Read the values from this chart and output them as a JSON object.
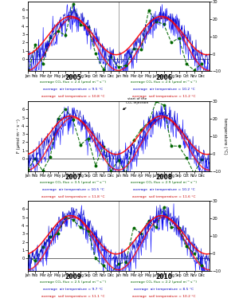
{
  "panels": [
    {
      "years": [
        "2005",
        "2006"
      ],
      "co2_avg_left": "2.4",
      "co2_avg_right": "2.6",
      "air_temp_left": "9.5",
      "air_temp_right": "10.2",
      "soil_temp_left": "10.8",
      "soil_temp_right": "11.2",
      "arrow": false
    },
    {
      "years": [
        "2007",
        "2008"
      ],
      "co2_avg_left": "3.5",
      "co2_avg_right": "2.9",
      "air_temp_left": "10.5",
      "air_temp_right": "10.2",
      "soil_temp_left": "11.8",
      "soil_temp_right": "11.6",
      "arrow": true
    },
    {
      "years": [
        "2009",
        "2010"
      ],
      "co2_avg_left": "2.5",
      "co2_avg_right": "2.2",
      "air_temp_left": "9.7",
      "air_temp_right": "8.5",
      "soil_temp_left": "11.1",
      "soil_temp_right": "10.2",
      "arrow": false
    }
  ],
  "ylim_flux": [
    -1.5,
    7
  ],
  "ylim_temp": [
    -10,
    30
  ],
  "yticks_flux": [
    0,
    1,
    2,
    3,
    4,
    5,
    6
  ],
  "yticks_temp": [
    -10,
    0,
    10,
    20,
    30
  ],
  "months": [
    "Jan",
    "Feb",
    "Mar",
    "Apr",
    "May",
    "June",
    "July",
    "Aug",
    "Sep",
    "Oct",
    "Nov",
    "Dec"
  ],
  "color_flux": "#0000ff",
  "color_air_line": "#0000cc",
  "color_soil_smooth": "#ff0000",
  "color_co2_smooth": "#ff0000",
  "color_dot": "#006600",
  "color_dashed": "#006600",
  "background": "#ffffff"
}
